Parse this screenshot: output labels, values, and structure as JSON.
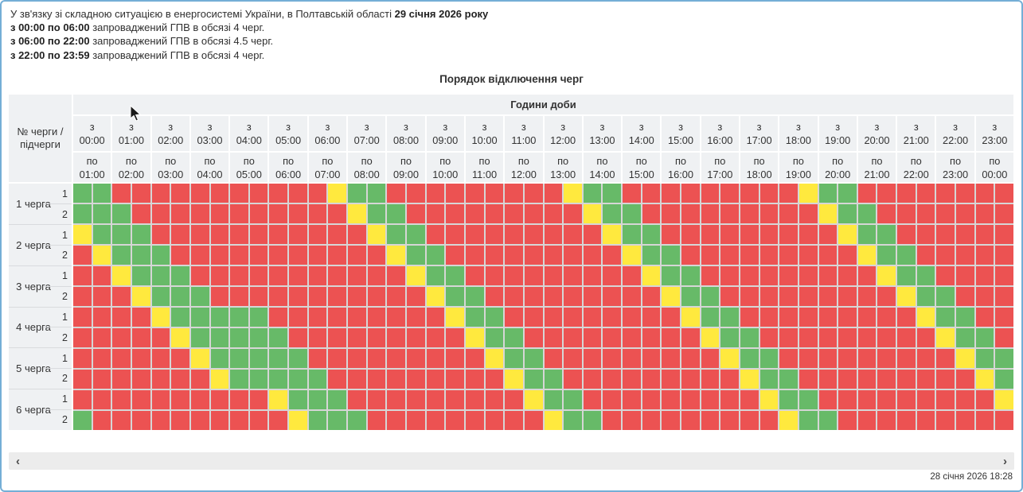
{
  "intro": {
    "line1_text": "У зв'язку зі складною ситуацією в енергосистемі України, в Полтавській області",
    "line1_date": "29 січня 2026 року",
    "schedule": [
      {
        "range": "з 00:00 по 06:00",
        "text": " запроваджений ГПВ в обсязі 4 черг."
      },
      {
        "range": "з 06:00 по 22:00",
        "text": " запроваджений ГПВ в обсязі 4.5 черг."
      },
      {
        "range": "з 22:00 по 23:59",
        "text": " запроваджений ГПВ в обсязі 4 черг."
      }
    ]
  },
  "title": "Порядок відключення черг",
  "table": {
    "corner_label": "№ черги / підчерги",
    "hours_header": "Години доби",
    "from_word": "з",
    "to_word": "по",
    "columns": [
      {
        "start": "00:00",
        "end": "01:00"
      },
      {
        "start": "01:00",
        "end": "02:00"
      },
      {
        "start": "02:00",
        "end": "03:00"
      },
      {
        "start": "03:00",
        "end": "04:00"
      },
      {
        "start": "04:00",
        "end": "05:00"
      },
      {
        "start": "05:00",
        "end": "06:00"
      },
      {
        "start": "06:00",
        "end": "07:00"
      },
      {
        "start": "07:00",
        "end": "08:00"
      },
      {
        "start": "08:00",
        "end": "09:00"
      },
      {
        "start": "09:00",
        "end": "10:00"
      },
      {
        "start": "10:00",
        "end": "11:00"
      },
      {
        "start": "11:00",
        "end": "12:00"
      },
      {
        "start": "12:00",
        "end": "13:00"
      },
      {
        "start": "13:00",
        "end": "14:00"
      },
      {
        "start": "14:00",
        "end": "15:00"
      },
      {
        "start": "15:00",
        "end": "16:00"
      },
      {
        "start": "16:00",
        "end": "17:00"
      },
      {
        "start": "17:00",
        "end": "18:00"
      },
      {
        "start": "18:00",
        "end": "19:00"
      },
      {
        "start": "19:00",
        "end": "20:00"
      },
      {
        "start": "20:00",
        "end": "21:00"
      },
      {
        "start": "21:00",
        "end": "22:00"
      },
      {
        "start": "22:00",
        "end": "23:00"
      },
      {
        "start": "23:00",
        "end": "00:00"
      }
    ],
    "cell_colors": {
      "G": "#67ba68",
      "R": "#ec5252",
      "Y": "#ffe93e"
    },
    "queues": [
      {
        "name": "1 черга",
        "rows": [
          {
            "sub": "1",
            "cells": "GGRRRRRRRRRRRYGGRRRRRRRRRYGGRRRRRRRRRYGGRRRRRRRR"
          },
          {
            "sub": "2",
            "cells": "GGGRRRRRRRRRRRYGGRRRRRRRRRYGGRRRRRRRRRYGGRRRRRRR"
          }
        ]
      },
      {
        "name": "2 черга",
        "rows": [
          {
            "sub": "1",
            "cells": "YGGGRRRRRRRRRRRYGGRRRRRRRRRYGGRRRRRRRRRYGGRRRRRR"
          },
          {
            "sub": "2",
            "cells": "RYGGGRRRRRRRRRRRYGGRRRRRRRRRYGGRRRRRRRRRYGGRRRRR"
          }
        ]
      },
      {
        "name": "3 черга",
        "rows": [
          {
            "sub": "1",
            "cells": "RRYGGGRRRRRRRRRRRYGGRRRRRRRRRYGGRRRRRRRRRYGGRRRR"
          },
          {
            "sub": "2",
            "cells": "RRRYGGGRRRRRRRRRRRYGGRRRRRRRRRYGGRRRRRRRRRYGGRRR"
          }
        ]
      },
      {
        "name": "4 черга",
        "rows": [
          {
            "sub": "1",
            "cells": "RRRRYGGGGGRRRRRRRRRYGGRRRRRRRRRYGGRRRRRRRRRYGGRR"
          },
          {
            "sub": "2",
            "cells": "RRRRRYGGGGGRRRRRRRRRYGGRRRRRRRRRYGGRRRRRRRRRYGGR"
          }
        ]
      },
      {
        "name": "5 черга",
        "rows": [
          {
            "sub": "1",
            "cells": "RRRRRRYGGGGGRRRRRRRRRYGGRRRRRRRRRYGGRRRRRRRRRYGG"
          },
          {
            "sub": "2",
            "cells": "RRRRRRRYGGGGGRRRRRRRRRYGGRRRRRRRRRYGGRRRRRRRRRYG"
          }
        ]
      },
      {
        "name": "6 черга",
        "rows": [
          {
            "sub": "1",
            "cells": "RRRRRRRRRRYGGGRRRRRRRRRYGGRRRRRRRRRYGGRRRRRRRRRY"
          },
          {
            "sub": "2",
            "cells": "GRRRRRRRRRRYGGGRRRRRRRRRYGGRRRRRRRRRYGGRRRRRRRRR"
          }
        ]
      }
    ]
  },
  "footer": {
    "scroll_left": "‹",
    "scroll_right": "›",
    "timestamp": "28 січня 2026 18:28"
  }
}
